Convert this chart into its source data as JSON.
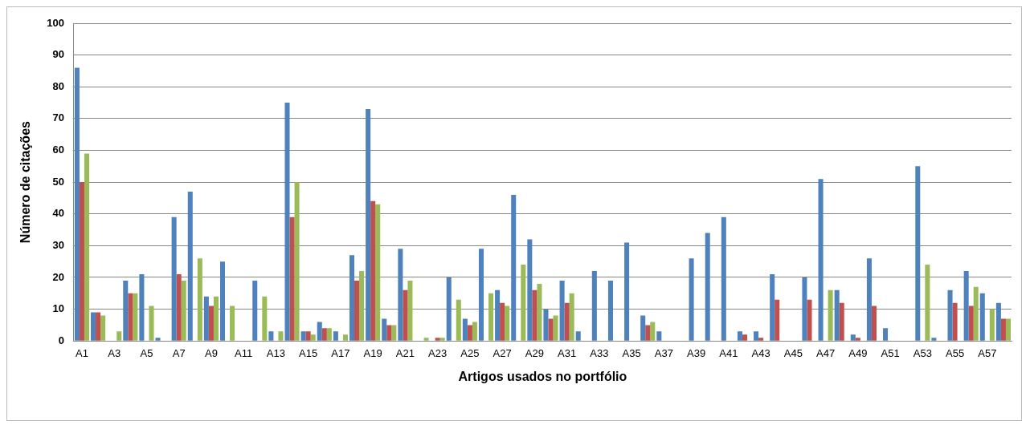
{
  "chart_data": {
    "type": "bar",
    "xlabel": "Artigos usados no portfólio",
    "ylabel": "Número de citações",
    "categories": [
      "A1",
      null,
      "A3",
      null,
      "A5",
      null,
      "A7",
      null,
      "A9",
      null,
      "A11",
      null,
      "A13",
      null,
      "A15",
      null,
      "A17",
      null,
      "A19",
      null,
      "A21",
      null,
      "A23",
      null,
      "A25",
      null,
      "A27",
      null,
      "A29",
      null,
      "A31",
      null,
      "A33",
      null,
      "A35",
      null,
      "A37",
      null,
      "A39",
      null,
      "A41",
      null,
      "A43",
      null,
      "A45",
      null,
      "A47",
      null,
      "A49",
      null,
      "A51",
      null,
      "A53",
      null,
      "A55",
      null,
      "A57",
      null
    ],
    "series": [
      {
        "color": "#4f81bd",
        "values": [
          86,
          9,
          0,
          19,
          21,
          1,
          39,
          47,
          14,
          25,
          0,
          19,
          3,
          75,
          3,
          6,
          3,
          27,
          73,
          7,
          29,
          0,
          0,
          20,
          7,
          29,
          16,
          46,
          32,
          10,
          19,
          3,
          22,
          19,
          31,
          8,
          3,
          0,
          26,
          34,
          39,
          3,
          3,
          21,
          0,
          20,
          51,
          16,
          2,
          26,
          4,
          0,
          55,
          1,
          16,
          22,
          15,
          12
        ]
      },
      {
        "color": "#c0504d",
        "values": [
          50,
          9,
          0,
          15,
          0,
          0,
          21,
          0,
          11,
          0,
          0,
          0,
          0,
          39,
          3,
          4,
          0,
          19,
          44,
          5,
          16,
          0,
          1,
          0,
          5,
          0,
          12,
          0,
          16,
          7,
          12,
          0,
          0,
          0,
          0,
          5,
          0,
          0,
          0,
          0,
          0,
          2,
          1,
          13,
          0,
          13,
          0,
          12,
          1,
          11,
          0,
          0,
          0,
          0,
          12,
          11,
          0,
          7
        ]
      },
      {
        "color": "#9bbb59",
        "values": [
          59,
          8,
          3,
          15,
          11,
          0,
          19,
          26,
          14,
          11,
          0,
          14,
          3,
          50,
          2,
          4,
          2,
          22,
          43,
          5,
          19,
          1,
          1,
          13,
          6,
          15,
          11,
          24,
          18,
          8,
          15,
          0,
          0,
          0,
          0,
          6,
          0,
          0,
          0,
          0,
          0,
          0,
          0,
          0,
          0,
          0,
          16,
          0,
          0,
          0,
          0,
          0,
          24,
          0,
          0,
          17,
          10,
          7
        ]
      }
    ],
    "ylim": [
      0,
      100
    ],
    "yticks": [
      0,
      10,
      20,
      30,
      40,
      50,
      60,
      70,
      80,
      90,
      100
    ],
    "grid": "y"
  }
}
